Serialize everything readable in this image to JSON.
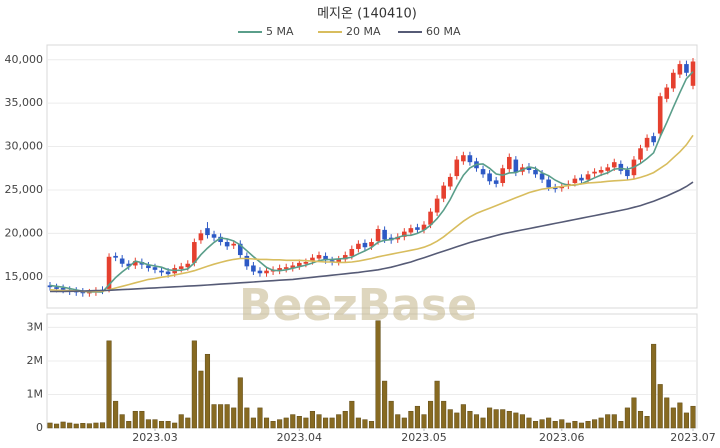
{
  "chart_data": [
    {
      "type": "candlestick",
      "title": "메지온 (140410)",
      "watermark": "BeezBase",
      "up_color": "#e5402f",
      "down_color": "#2d59c5",
      "open": [
        14000,
        13800,
        13700,
        13500,
        13400,
        13300,
        13100,
        13200,
        13500,
        13600,
        17400,
        17100,
        16500,
        16300,
        16700,
        16300,
        16100,
        15700,
        15600,
        15400,
        15900,
        16100,
        16600,
        19200,
        20600,
        19900,
        19600,
        19000,
        18600,
        18800,
        17400,
        16300,
        15700,
        15400,
        15600,
        15700,
        15900,
        16000,
        16200,
        16500,
        16800,
        17100,
        17400,
        16900,
        16700,
        17000,
        17400,
        18200,
        18900,
        18500,
        19100,
        20400,
        19500,
        19300,
        19600,
        20100,
        20700,
        20400,
        21000,
        22400,
        24000,
        25400,
        26600,
        28300,
        29000,
        28300,
        27400,
        26900,
        26100,
        25800,
        27400,
        28500,
        27100,
        27700,
        27300,
        26900,
        26200,
        25300,
        25200,
        25500,
        25800,
        26400,
        26200,
        26900,
        27000,
        27200,
        27600,
        28000,
        27300,
        26700,
        28500,
        29900,
        31200,
        31500,
        35500,
        36700,
        38300,
        39500,
        37000
      ],
      "high": [
        14400,
        14200,
        14100,
        13900,
        13800,
        13700,
        13600,
        13800,
        13900,
        17700,
        17800,
        17500,
        16900,
        17200,
        17100,
        16700,
        16500,
        16100,
        16000,
        16400,
        16600,
        16900,
        19400,
        20400,
        21300,
        20300,
        20000,
        19400,
        19200,
        19200,
        17800,
        16700,
        16100,
        16100,
        16200,
        16400,
        16500,
        16700,
        17000,
        17100,
        17600,
        17900,
        17800,
        17300,
        17400,
        17900,
        18600,
        19200,
        19300,
        19400,
        20900,
        20800,
        19900,
        20000,
        20600,
        21000,
        21100,
        21400,
        22900,
        24400,
        25900,
        26900,
        28900,
        29400,
        29400,
        28700,
        27800,
        27300,
        26500,
        27900,
        29200,
        28900,
        28000,
        28100,
        27700,
        27300,
        26600,
        25700,
        25800,
        26100,
        26700,
        26800,
        27200,
        27500,
        27700,
        28000,
        28600,
        28400,
        27700,
        28900,
        30200,
        31400,
        31600,
        36200,
        37200,
        38900,
        39900,
        39900,
        40200
      ],
      "low": [
        13400,
        13200,
        13100,
        12900,
        12800,
        12700,
        12700,
        12800,
        13000,
        13200,
        16800,
        16100,
        15800,
        15900,
        15900,
        15600,
        15400,
        15100,
        14900,
        15000,
        15500,
        15700,
        16200,
        18800,
        19400,
        19100,
        18600,
        18100,
        18200,
        17100,
        15800,
        15200,
        15000,
        15000,
        15200,
        15300,
        15500,
        15600,
        15800,
        16100,
        16400,
        16700,
        16500,
        16300,
        16300,
        16600,
        17000,
        17800,
        18000,
        18100,
        18700,
        18900,
        18800,
        18900,
        19200,
        19700,
        20000,
        20000,
        20600,
        22000,
        23600,
        25000,
        26200,
        27900,
        27800,
        27100,
        26400,
        25600,
        25300,
        25400,
        27000,
        26600,
        26700,
        26900,
        26400,
        25800,
        24900,
        24700,
        24800,
        25100,
        25400,
        25700,
        25800,
        26500,
        26600,
        26800,
        27200,
        26800,
        26200,
        26300,
        28100,
        29500,
        30100,
        31100,
        35100,
        36300,
        37900,
        38100,
        36600
      ],
      "close": [
        13800,
        13600,
        13500,
        13300,
        13200,
        13100,
        13200,
        13400,
        13400,
        17300,
        17200,
        16500,
        16200,
        16800,
        16400,
        16000,
        15800,
        15500,
        15300,
        16000,
        16200,
        16500,
        19000,
        20000,
        19800,
        19500,
        19000,
        18500,
        18800,
        17500,
        16200,
        15600,
        15400,
        15700,
        15800,
        16000,
        16100,
        16300,
        16600,
        16700,
        17200,
        17500,
        16900,
        16700,
        17000,
        17500,
        18200,
        18800,
        18400,
        19000,
        20500,
        19300,
        19200,
        19600,
        20200,
        20600,
        20400,
        21000,
        22500,
        24000,
        25500,
        26500,
        28500,
        29000,
        28200,
        27500,
        26800,
        26000,
        25700,
        27500,
        28800,
        27000,
        27600,
        27300,
        26800,
        26200,
        25300,
        25100,
        25400,
        25700,
        26300,
        26100,
        26800,
        27100,
        27300,
        27600,
        28200,
        27200,
        26600,
        28500,
        29800,
        31000,
        30500,
        35800,
        36800,
        38500,
        39500,
        38500,
        39800
      ],
      "series": [
        {
          "name": "5 MA",
          "color": "#5a9e8a",
          "values": [
            14000,
            13900,
            13800,
            13650,
            13480,
            13340,
            13260,
            13240,
            13260,
            14080,
            14900,
            15560,
            16120,
            16800,
            16620,
            16380,
            16240,
            16100,
            15800,
            15720,
            15760,
            15900,
            16600,
            17540,
            18300,
            18960,
            19460,
            19360,
            19120,
            18660,
            18000,
            17320,
            16700,
            16080,
            15740,
            15700,
            15800,
            15980,
            16160,
            16340,
            16580,
            16860,
            16980,
            17000,
            17060,
            17120,
            17260,
            17640,
            17980,
            18380,
            18980,
            19200,
            19280,
            19520,
            19760,
            19780,
            20000,
            20360,
            20940,
            21700,
            22680,
            23900,
            25400,
            26700,
            27540,
            27940,
            28000,
            27500,
            26840,
            26700,
            26960,
            27000,
            27320,
            27640,
            27500,
            26980,
            26640,
            26140,
            25760,
            25540,
            25560,
            25720,
            26060,
            26400,
            26720,
            26980,
            27400,
            27480,
            27380,
            27620,
            28060,
            28620,
            29280,
            31120,
            32780,
            34520,
            36220,
            37820,
            38620
          ]
        },
        {
          "name": "20 MA",
          "color": "#d8bd5e",
          "values": [
            13500,
            13450,
            13400,
            13400,
            13350,
            13300,
            13300,
            13300,
            13350,
            13500,
            13700,
            13900,
            14100,
            14300,
            14500,
            14700,
            14800,
            14950,
            15050,
            15200,
            15350,
            15500,
            15700,
            15950,
            16200,
            16450,
            16650,
            16850,
            17000,
            17100,
            17100,
            17050,
            17000,
            17000,
            16950,
            16950,
            16900,
            16900,
            16900,
            16850,
            16800,
            16750,
            16700,
            16700,
            16650,
            16650,
            16700,
            16800,
            16950,
            17100,
            17300,
            17450,
            17600,
            17750,
            17900,
            18050,
            18200,
            18400,
            18700,
            19100,
            19600,
            20200,
            20800,
            21400,
            21900,
            22300,
            22600,
            22900,
            23200,
            23500,
            23800,
            24100,
            24400,
            24700,
            24900,
            25100,
            25200,
            25300,
            25400,
            25500,
            25600,
            25700,
            25800,
            25850,
            25900,
            26000,
            26050,
            26100,
            26150,
            26250,
            26450,
            26700,
            27000,
            27500,
            28000,
            28700,
            29400,
            30200,
            31300
          ]
        },
        {
          "name": "60 MA",
          "color": "#565b76",
          "values": [
            13300,
            13300,
            13300,
            13320,
            13340,
            13360,
            13380,
            13400,
            13420,
            13440,
            13480,
            13520,
            13560,
            13600,
            13640,
            13680,
            13720,
            13760,
            13800,
            13840,
            13880,
            13920,
            13960,
            14000,
            14050,
            14100,
            14150,
            14200,
            14250,
            14300,
            14350,
            14400,
            14450,
            14500,
            14550,
            14600,
            14650,
            14700,
            14780,
            14860,
            14940,
            15020,
            15100,
            15180,
            15260,
            15340,
            15420,
            15500,
            15600,
            15700,
            15800,
            15950,
            16100,
            16300,
            16500,
            16700,
            16950,
            17200,
            17450,
            17700,
            17950,
            18200,
            18450,
            18700,
            18950,
            19150,
            19350,
            19550,
            19750,
            19950,
            20100,
            20250,
            20400,
            20550,
            20700,
            20850,
            21000,
            21150,
            21300,
            21450,
            21600,
            21750,
            21900,
            22050,
            22200,
            22350,
            22500,
            22650,
            22800,
            23000,
            23200,
            23450,
            23700,
            24000,
            24300,
            24650,
            25000,
            25400,
            25900
          ]
        }
      ],
      "ylim": [
        11400,
        41700
      ],
      "yticks": [
        {
          "value": 15000,
          "label": "15,000"
        },
        {
          "value": 20000,
          "label": "20,000"
        },
        {
          "value": 25000,
          "label": "25,000"
        },
        {
          "value": 30000,
          "label": "30,000"
        },
        {
          "value": 35000,
          "label": "35,000"
        },
        {
          "value": 40000,
          "label": "40,000"
        }
      ],
      "grid": true
    },
    {
      "type": "bar",
      "color": "#876a22",
      "categories": [
        null,
        null,
        null,
        null,
        null,
        null,
        null,
        null,
        null,
        null,
        null,
        null,
        null,
        null,
        null,
        null,
        "2023.03",
        null,
        null,
        null,
        null,
        null,
        null,
        null,
        null,
        null,
        null,
        null,
        null,
        null,
        null,
        null,
        null,
        null,
        null,
        null,
        null,
        null,
        "2023.04",
        null,
        null,
        null,
        null,
        null,
        null,
        null,
        null,
        null,
        null,
        null,
        null,
        null,
        null,
        null,
        null,
        null,
        null,
        "2023.05",
        null,
        null,
        null,
        null,
        null,
        null,
        null,
        null,
        null,
        null,
        null,
        null,
        null,
        null,
        null,
        null,
        null,
        null,
        null,
        null,
        "2023.06",
        null,
        null,
        null,
        null,
        null,
        null,
        null,
        null,
        null,
        null,
        null,
        null,
        null,
        null,
        null,
        null,
        null,
        null,
        null,
        "2023.07"
      ],
      "values": [
        150000,
        120000,
        180000,
        150000,
        120000,
        140000,
        130000,
        150000,
        160000,
        2600000,
        800000,
        400000,
        200000,
        500000,
        500000,
        250000,
        250000,
        200000,
        200000,
        150000,
        400000,
        300000,
        2600000,
        1700000,
        2200000,
        700000,
        700000,
        700000,
        600000,
        1500000,
        600000,
        300000,
        600000,
        300000,
        200000,
        250000,
        300000,
        400000,
        350000,
        300000,
        500000,
        400000,
        300000,
        300000,
        400000,
        500000,
        800000,
        300000,
        250000,
        200000,
        3200000,
        1400000,
        800000,
        400000,
        300000,
        500000,
        650000,
        400000,
        800000,
        1400000,
        800000,
        550000,
        450000,
        700000,
        500000,
        400000,
        300000,
        600000,
        550000,
        550000,
        500000,
        450000,
        400000,
        300000,
        200000,
        250000,
        300000,
        200000,
        250000,
        150000,
        200000,
        150000,
        200000,
        250000,
        300000,
        400000,
        400000,
        200000,
        600000,
        900000,
        500000,
        350000,
        2500000,
        1300000,
        900000,
        600000,
        750000,
        450000,
        650000
      ],
      "ylim": [
        0,
        3400000
      ],
      "yticks": [
        0,
        {
          "value": 1000000,
          "label": "1M"
        },
        {
          "value": 2000000,
          "label": "2M"
        },
        {
          "value": 3000000,
          "label": "3M"
        }
      ],
      "grid": true
    }
  ]
}
